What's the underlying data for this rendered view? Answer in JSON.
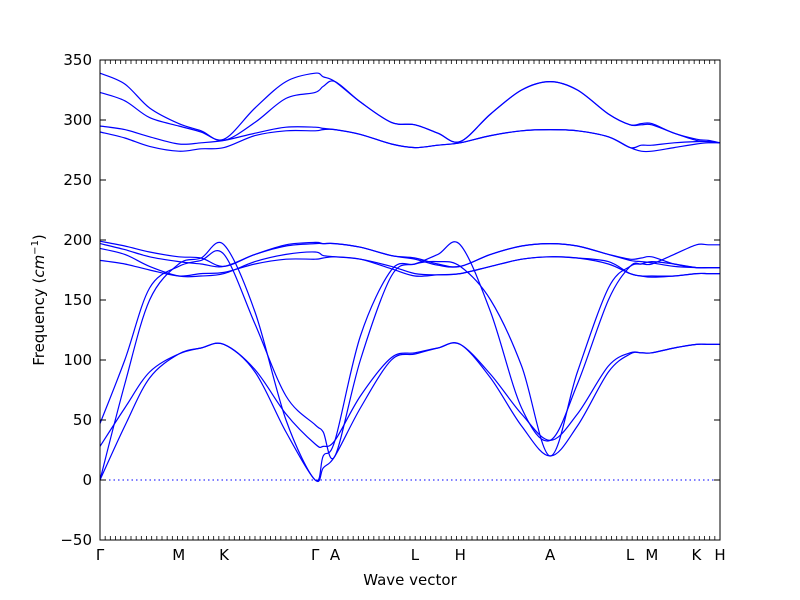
{
  "chart_data": {
    "type": "line",
    "title": "",
    "xlabel": "Wave vector",
    "ylabel": "Frequency (cm⁻¹)",
    "ylabel_prefix": "Frequency (",
    "ylabel_unit": "cm",
    "ylabel_exp": "−1",
    "ylabel_suffix": ")",
    "ylim": [
      -50,
      350
    ],
    "yticks": [
      -50,
      0,
      50,
      100,
      150,
      200,
      250,
      300,
      350
    ],
    "xlim": [
      0,
      1
    ],
    "grid": false,
    "line_color": "#0000ff",
    "zero_line": 0,
    "xticks": [
      {
        "label": "Γ",
        "x": 0.0
      },
      {
        "label": "M",
        "x": 0.127
      },
      {
        "label": "K",
        "x": 0.2
      },
      {
        "label": "Γ",
        "x": 0.347
      },
      {
        "label": "A",
        "x": 0.379
      },
      {
        "label": "L",
        "x": 0.508
      },
      {
        "label": "H",
        "x": 0.581
      },
      {
        "label": "A",
        "x": 0.726
      },
      {
        "label": "L",
        "x": 0.855
      },
      {
        "label": "M",
        "x": 0.89
      },
      {
        "label": "K",
        "x": 0.962
      },
      {
        "label": "H",
        "x": 1.0
      }
    ],
    "series": [
      {
        "x": [
          0.0,
          0.04,
          0.08,
          0.127,
          0.163,
          0.2,
          0.25,
          0.3,
          0.347,
          0.36,
          0.379,
          0.42,
          0.47,
          0.508,
          0.545,
          0.581,
          0.63,
          0.68,
          0.726,
          0.77,
          0.82,
          0.855,
          0.873,
          0.89,
          0.926,
          0.962,
          0.981,
          1.0
        ],
        "y": [
          0,
          45,
          85,
          105,
          110,
          113,
          90,
          40,
          0,
          10,
          20,
          60,
          100,
          105,
          110,
          113,
          85,
          45,
          20,
          45,
          90,
          105,
          106,
          106,
          110,
          113,
          113,
          113
        ]
      },
      {
        "x": [
          0.0,
          0.04,
          0.08,
          0.127,
          0.163,
          0.2,
          0.25,
          0.3,
          0.347,
          0.36,
          0.379,
          0.42,
          0.47,
          0.508,
          0.545,
          0.581,
          0.63,
          0.68,
          0.726,
          0.77,
          0.82,
          0.855,
          0.873,
          0.89,
          0.926,
          0.962,
          0.981,
          1.0
        ],
        "y": [
          28,
          60,
          90,
          105,
          110,
          113,
          92,
          55,
          30,
          28,
          33,
          70,
          102,
          106,
          110,
          113,
          88,
          55,
          33,
          55,
          95,
          106,
          106,
          106,
          110,
          113,
          113,
          113
        ]
      },
      {
        "x": [
          0.0,
          0.04,
          0.08,
          0.127,
          0.163,
          0.2,
          0.25,
          0.3,
          0.347,
          0.36,
          0.379,
          0.42,
          0.47,
          0.508,
          0.545,
          0.581,
          0.63,
          0.68,
          0.726,
          0.77,
          0.82,
          0.855,
          0.873,
          0.89,
          0.926,
          0.962,
          0.981,
          1.0
        ],
        "y": [
          0,
          80,
          150,
          180,
          185,
          196,
          140,
          50,
          0,
          20,
          33,
          120,
          175,
          180,
          188,
          196,
          140,
          60,
          33,
          80,
          150,
          178,
          180,
          180,
          188,
          196,
          196,
          196
        ]
      },
      {
        "x": [
          0.0,
          0.04,
          0.08,
          0.127,
          0.163,
          0.2,
          0.25,
          0.3,
          0.347,
          0.36,
          0.379,
          0.42,
          0.47,
          0.508,
          0.545,
          0.581,
          0.63,
          0.68,
          0.726,
          0.77,
          0.82,
          0.855,
          0.873,
          0.89,
          0.926,
          0.962,
          0.981,
          1.0
        ],
        "y": [
          47,
          100,
          160,
          178,
          183,
          188,
          130,
          70,
          46,
          40,
          20,
          100,
          170,
          180,
          182,
          178,
          150,
          95,
          20,
          90,
          160,
          178,
          180,
          182,
          180,
          177,
          177,
          177
        ]
      },
      {
        "x": [
          0.0,
          0.04,
          0.08,
          0.127,
          0.163,
          0.2,
          0.25,
          0.3,
          0.347,
          0.36,
          0.379,
          0.42,
          0.47,
          0.508,
          0.545,
          0.581,
          0.63,
          0.68,
          0.726,
          0.77,
          0.82,
          0.855,
          0.873,
          0.89,
          0.926,
          0.962,
          0.981,
          1.0
        ],
        "y": [
          183,
          180,
          175,
          170,
          172,
          173,
          180,
          184,
          184,
          185,
          186,
          184,
          176,
          170,
          171,
          172,
          178,
          184,
          186,
          185,
          182,
          172,
          170,
          169,
          170,
          172,
          172,
          172
        ]
      },
      {
        "x": [
          0.0,
          0.04,
          0.08,
          0.127,
          0.163,
          0.2,
          0.25,
          0.3,
          0.347,
          0.36,
          0.379,
          0.42,
          0.47,
          0.508,
          0.545,
          0.581,
          0.63,
          0.68,
          0.726,
          0.77,
          0.82,
          0.855,
          0.873,
          0.89,
          0.926,
          0.962,
          0.981,
          1.0
        ],
        "y": [
          193,
          188,
          178,
          170,
          170,
          172,
          182,
          188,
          190,
          187,
          186,
          184,
          178,
          172,
          171,
          172,
          178,
          184,
          186,
          185,
          180,
          172,
          170,
          170,
          170,
          172,
          172,
          172
        ]
      },
      {
        "x": [
          0.0,
          0.04,
          0.08,
          0.127,
          0.163,
          0.2,
          0.25,
          0.3,
          0.347,
          0.36,
          0.379,
          0.42,
          0.47,
          0.508,
          0.545,
          0.581,
          0.63,
          0.68,
          0.726,
          0.77,
          0.82,
          0.855,
          0.873,
          0.89,
          0.926,
          0.962,
          0.981,
          1.0
        ],
        "y": [
          197,
          192,
          186,
          182,
          180,
          178,
          188,
          195,
          197,
          197,
          197,
          194,
          187,
          184,
          179,
          178,
          188,
          195,
          197,
          195,
          188,
          183,
          182,
          181,
          178,
          177,
          177,
          177
        ]
      },
      {
        "x": [
          0.0,
          0.04,
          0.08,
          0.127,
          0.163,
          0.2,
          0.25,
          0.3,
          0.347,
          0.36,
          0.379,
          0.42,
          0.47,
          0.508,
          0.545,
          0.581,
          0.63,
          0.68,
          0.726,
          0.77,
          0.82,
          0.855,
          0.873,
          0.89,
          0.926,
          0.962,
          0.981,
          1.0
        ],
        "y": [
          199,
          195,
          190,
          186,
          185,
          178,
          188,
          196,
          198,
          197,
          197,
          194,
          187,
          185,
          180,
          178,
          188,
          195,
          197,
          195,
          188,
          184,
          185,
          186,
          180,
          177,
          177,
          177
        ]
      },
      {
        "x": [
          0.0,
          0.04,
          0.08,
          0.127,
          0.163,
          0.2,
          0.25,
          0.3,
          0.347,
          0.36,
          0.379,
          0.42,
          0.47,
          0.508,
          0.545,
          0.581,
          0.63,
          0.68,
          0.726,
          0.77,
          0.82,
          0.855,
          0.873,
          0.89,
          0.926,
          0.962,
          0.981,
          1.0
        ],
        "y": [
          290,
          285,
          278,
          274,
          276,
          277,
          287,
          291,
          291,
          292,
          292,
          288,
          280,
          277,
          279,
          281,
          287,
          291,
          292,
          291,
          286,
          277,
          274,
          274,
          277,
          280,
          281,
          281
        ]
      },
      {
        "x": [
          0.0,
          0.04,
          0.08,
          0.127,
          0.163,
          0.2,
          0.25,
          0.3,
          0.347,
          0.36,
          0.379,
          0.42,
          0.47,
          0.508,
          0.545,
          0.581,
          0.63,
          0.68,
          0.726,
          0.77,
          0.82,
          0.855,
          0.873,
          0.89,
          0.926,
          0.962,
          0.981,
          1.0
        ],
        "y": [
          295,
          292,
          286,
          280,
          281,
          283,
          289,
          294,
          294,
          293,
          292,
          288,
          280,
          277,
          279,
          281,
          287,
          291,
          292,
          291,
          286,
          277,
          279,
          279,
          281,
          282,
          282,
          281
        ]
      },
      {
        "x": [
          0.0,
          0.04,
          0.08,
          0.127,
          0.163,
          0.2,
          0.25,
          0.3,
          0.347,
          0.36,
          0.379,
          0.42,
          0.47,
          0.508,
          0.545,
          0.581,
          0.63,
          0.68,
          0.726,
          0.77,
          0.82,
          0.855,
          0.873,
          0.89,
          0.926,
          0.962,
          0.981,
          1.0
        ],
        "y": [
          323,
          316,
          302,
          295,
          290,
          283,
          298,
          318,
          323,
          328,
          332,
          315,
          298,
          296,
          289,
          282,
          305,
          325,
          332,
          325,
          305,
          296,
          296,
          296,
          289,
          283,
          282,
          281
        ]
      },
      {
        "x": [
          0.0,
          0.04,
          0.08,
          0.127,
          0.163,
          0.2,
          0.25,
          0.3,
          0.347,
          0.36,
          0.379,
          0.42,
          0.47,
          0.508,
          0.545,
          0.581,
          0.63,
          0.68,
          0.726,
          0.77,
          0.82,
          0.855,
          0.873,
          0.89,
          0.926,
          0.962,
          0.981,
          1.0
        ],
        "y": [
          339,
          330,
          310,
          297,
          291,
          284,
          310,
          332,
          339,
          336,
          332,
          315,
          298,
          296,
          289,
          282,
          305,
          325,
          332,
          325,
          305,
          296,
          297,
          297,
          289,
          284,
          283,
          281
        ]
      }
    ]
  }
}
